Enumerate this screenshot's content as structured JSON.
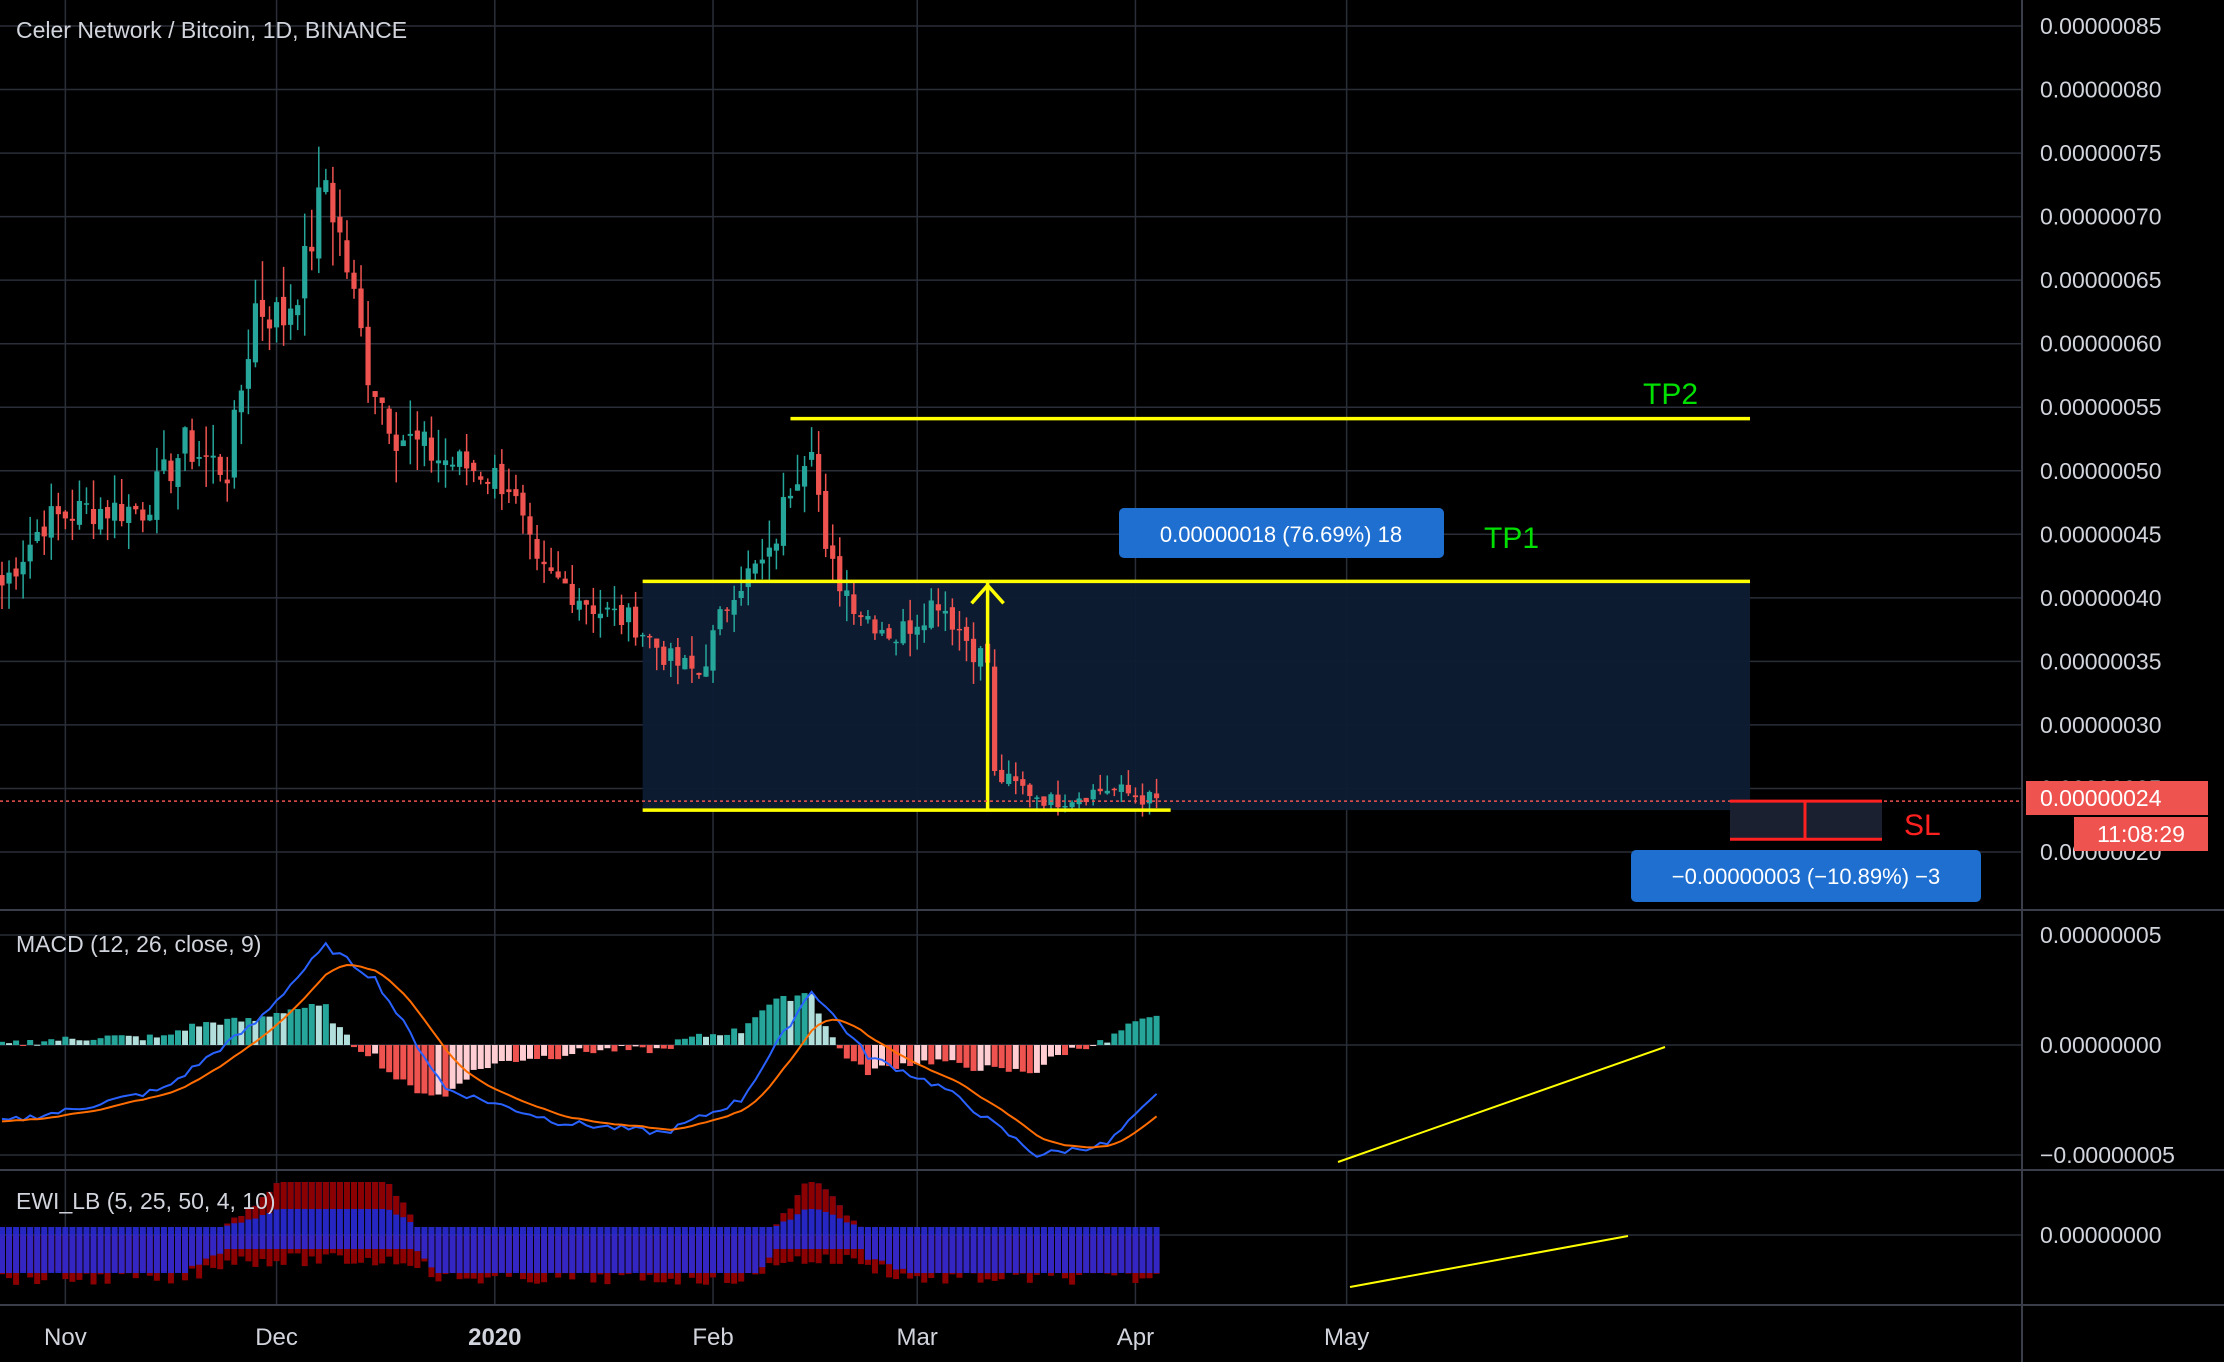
{
  "header": {
    "title": "Celer Network / Bitcoin, 1D, BINANCE"
  },
  "colors": {
    "background": "#000000",
    "grid": "#2a2e39",
    "up": "#26a69a",
    "down": "#ef5350",
    "level": "#ffff00",
    "tp_text": "#00e000",
    "sl_text": "#ff2020",
    "box_fill": "#0d1c33",
    "label_blue": "#1e6fd0",
    "price_tag": "#ef5350",
    "macd_line": "#2962ff",
    "signal_line": "#ff6d00",
    "ewi_blue": "#2a2ad8",
    "ewi_red": "#8b0000"
  },
  "price_axis": {
    "ticks": [
      "0.00000085",
      "0.00000080",
      "0.00000075",
      "0.00000070",
      "0.00000065",
      "0.00000060",
      "0.00000055",
      "0.00000050",
      "0.00000045",
      "0.00000040",
      "0.00000035",
      "0.00000030",
      "0.00000025",
      "0.00000020"
    ],
    "current_price": "0.00000024",
    "countdown": "11:08:29"
  },
  "time_axis": {
    "labels": [
      "Nov",
      "Dec",
      "2020",
      "Feb",
      "Mar",
      "Apr",
      "May"
    ]
  },
  "annotations": {
    "tp2": "TP2",
    "tp1": "TP1",
    "sl": "SL",
    "measure_up": "0.00000018 (76.69%) 18",
    "measure_down": "−0.00000003 (−10.89%) −3"
  },
  "macd": {
    "title": "MACD (12, 26, close, 9)",
    "ticks": [
      "0.00000005",
      "0.00000000",
      "−0.00000005"
    ]
  },
  "ewi": {
    "title": "EWI_LB (5, 25, 50, 4, 10)",
    "ticks": [
      "0.00000000"
    ]
  },
  "chart_data": {
    "type": "candlestick",
    "title": "Celer Network / Bitcoin, 1D, BINANCE",
    "x_start": "2019-10-23",
    "interval": "1D",
    "ylim": [
      1.7e-07,
      8.7e-07
    ],
    "levels": {
      "tp2": 5.41e-07,
      "tp1": 4.13e-07,
      "entry_support": 2.33e-07,
      "sl": 2.1e-07
    },
    "close_anchors": [
      [
        "2019-10-23",
        4.1e-07
      ],
      [
        "2019-10-29",
        4.6e-07
      ],
      [
        "2019-11-04",
        4.7e-07
      ],
      [
        "2019-11-12",
        4.7e-07
      ],
      [
        "2019-11-18",
        5.2e-07
      ],
      [
        "2019-11-24",
        5e-07
      ],
      [
        "2019-11-28",
        6.3e-07
      ],
      [
        "2019-12-02",
        6.2e-07
      ],
      [
        "2019-12-05",
        6.6e-07
      ],
      [
        "2019-12-08",
        7.3e-07
      ],
      [
        "2019-12-11",
        6.6e-07
      ],
      [
        "2019-12-14",
        5.8e-07
      ],
      [
        "2019-12-18",
        5.3e-07
      ],
      [
        "2019-12-24",
        5.1e-07
      ],
      [
        "2019-12-30",
        5e-07
      ],
      [
        "2020-01-03",
        4.9e-07
      ],
      [
        "2020-01-07",
        4.2e-07
      ],
      [
        "2020-01-11",
        4.1e-07
      ],
      [
        "2020-01-16",
        3.9e-07
      ],
      [
        "2020-01-21",
        3.8e-07
      ],
      [
        "2020-01-26",
        3.5e-07
      ],
      [
        "2020-01-30",
        3.4e-07
      ],
      [
        "2020-02-04",
        4.1e-07
      ],
      [
        "2020-02-09",
        4.3e-07
      ],
      [
        "2020-02-12",
        4.9e-07
      ],
      [
        "2020-02-15",
        5.3e-07
      ],
      [
        "2020-02-17",
        4.3e-07
      ],
      [
        "2020-02-22",
        3.9e-07
      ],
      [
        "2020-02-27",
        3.7e-07
      ],
      [
        "2020-03-04",
        4e-07
      ],
      [
        "2020-03-09",
        3.6e-07
      ],
      [
        "2020-03-11",
        3.5e-07
      ],
      [
        "2020-03-12",
        2.6e-07
      ],
      [
        "2020-03-20",
        2.4e-07
      ],
      [
        "2020-03-28",
        2.5e-07
      ],
      [
        "2020-04-04",
        2.4e-07
      ]
    ],
    "macd_anchors": [
      [
        "2019-10-23",
        -3.5e-08
      ],
      [
        "2019-11-01",
        -3e-08
      ],
      [
        "2019-11-15",
        -2e-08
      ],
      [
        "2019-11-28",
        1e-08
      ],
      [
        "2019-12-08",
        4.5e-08
      ],
      [
        "2019-12-15",
        3e-08
      ],
      [
        "2019-12-25",
        -2e-08
      ],
      [
        "2020-01-10",
        -3.5e-08
      ],
      [
        "2020-01-25",
        -4e-08
      ],
      [
        "2020-02-05",
        -2.5e-08
      ],
      [
        "2020-02-15",
        2.5e-08
      ],
      [
        "2020-02-23",
        -5e-09
      ],
      [
        "2020-03-05",
        -2e-08
      ],
      [
        "2020-03-18",
        -5e-08
      ],
      [
        "2020-03-28",
        -4.5e-08
      ],
      [
        "2020-04-04",
        -2.3e-08
      ]
    ]
  }
}
